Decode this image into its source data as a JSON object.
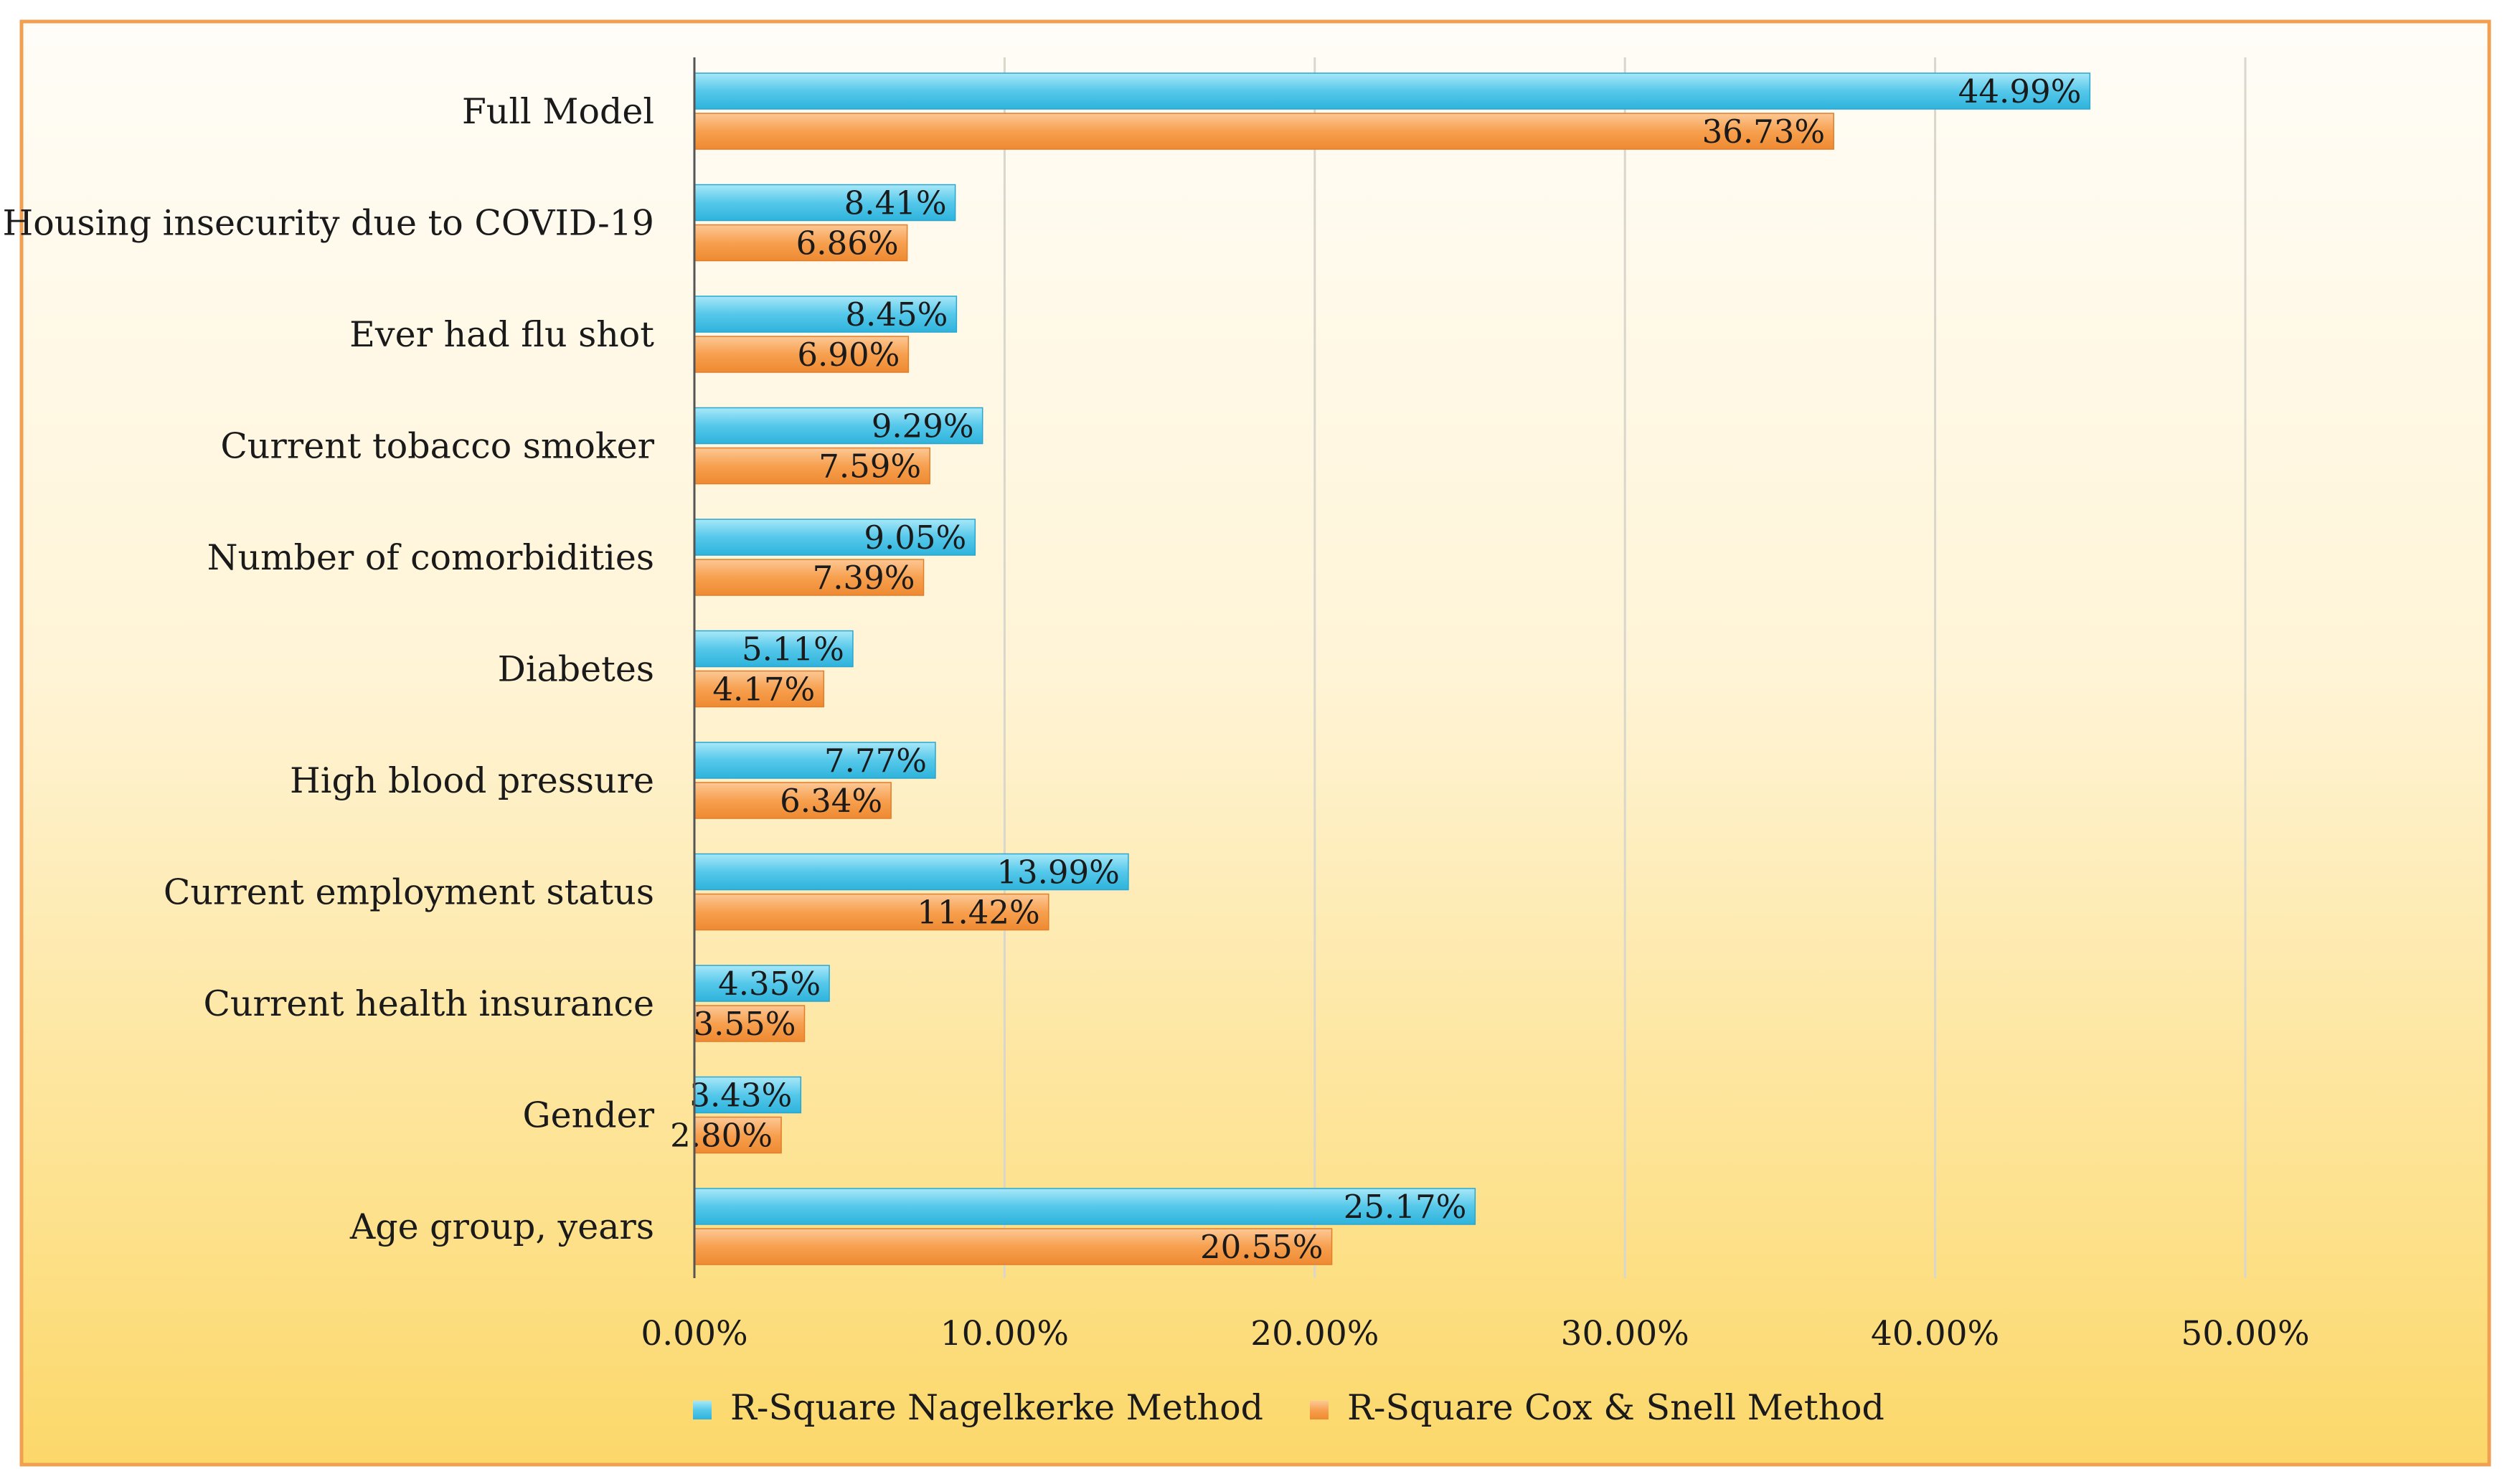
{
  "chart_data": {
    "type": "bar",
    "orientation": "horizontal",
    "title": "",
    "xlabel": "",
    "ylabel": "",
    "xlim": [
      0,
      50
    ],
    "x_ticks": [
      0,
      10,
      20,
      30,
      40,
      50
    ],
    "x_tick_labels": [
      "0.00%",
      "10.00%",
      "20.00%",
      "30.00%",
      "40.00%",
      "50.00%"
    ],
    "grid": "vertical",
    "legend_position": "bottom",
    "categories": [
      "Full Model",
      "Housing insecurity due to COVID-19",
      "Ever had flu shot",
      "Current tobacco smoker",
      "Number of comorbidities",
      "Diabetes",
      "High blood pressure",
      "Current employment status",
      "Current health insurance",
      "Gender",
      "Age group, years"
    ],
    "series": [
      {
        "name": "R-Square Nagelkerke Method",
        "color": "#55c8ea",
        "values": [
          44.99,
          8.41,
          8.45,
          9.29,
          9.05,
          5.11,
          7.77,
          13.99,
          4.35,
          3.43,
          25.17
        ],
        "labels": [
          "44.99%",
          "8.41%",
          "8.45%",
          "9.29%",
          "9.05%",
          "5.11%",
          "7.77%",
          "13.99%",
          "4.35%",
          "3.43%",
          "25.17%"
        ]
      },
      {
        "name": "R-Square Cox & Snell Method",
        "color": "#f7a04f",
        "values": [
          36.73,
          6.86,
          6.9,
          7.59,
          7.39,
          4.17,
          6.34,
          11.42,
          3.55,
          2.8,
          20.55
        ],
        "labels": [
          "36.73%",
          "6.86%",
          "6.90%",
          "7.59%",
          "7.39%",
          "4.17%",
          "6.34%",
          "11.42%",
          "3.55%",
          "2.80%",
          "20.55%"
        ]
      }
    ],
    "colors": {
      "border": "#f0a050",
      "background_top": "#fffdf8",
      "background_bottom": "#fcd86a",
      "gridline": "#d9d6cc",
      "axis": "#555555",
      "text": "#1a1a1a"
    }
  }
}
